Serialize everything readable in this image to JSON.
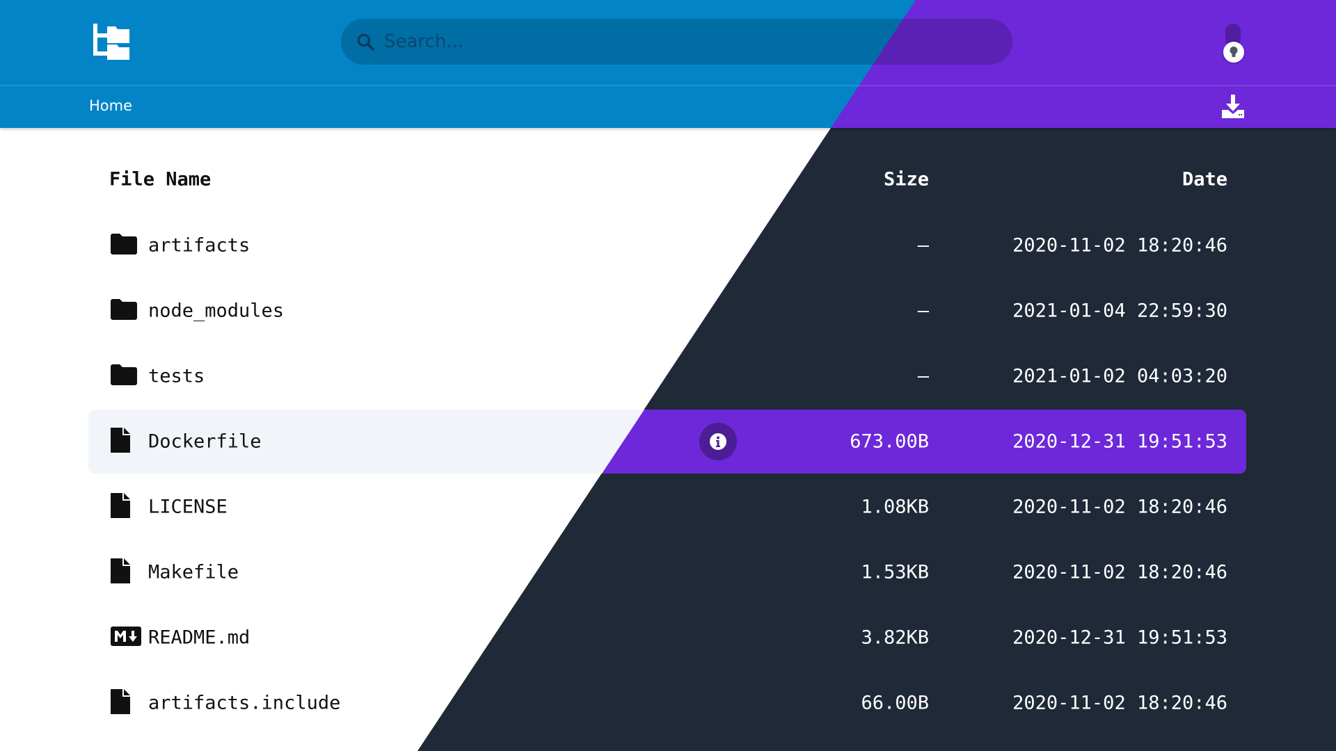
{
  "header": {
    "search_placeholder": "Search...",
    "breadcrumb": [
      "Home"
    ]
  },
  "colors": {
    "header_light": "#0284c7",
    "header_dark": "#6d28d9",
    "bg_dark": "#1f2937",
    "selected_light": "#f1f5f9",
    "selected_dark": "#6d28d9"
  },
  "table": {
    "columns": {
      "name": "File Name",
      "size": "Size",
      "date": "Date"
    },
    "rows": [
      {
        "name": "artifacts",
        "icon": "folder-icon",
        "size": "—",
        "date": "2020-11-02 18:20:46"
      },
      {
        "name": "node_modules",
        "icon": "folder-icon",
        "size": "—",
        "date": "2021-01-04 22:59:30"
      },
      {
        "name": "tests",
        "icon": "folder-icon",
        "size": "—",
        "date": "2021-01-02 04:03:20"
      },
      {
        "name": "Dockerfile",
        "icon": "file-icon",
        "size": "673.00B",
        "date": "2020-12-31 19:51:53",
        "selected": true
      },
      {
        "name": "LICENSE",
        "icon": "file-icon",
        "size": "1.08KB",
        "date": "2020-11-02 18:20:46"
      },
      {
        "name": "Makefile",
        "icon": "file-icon",
        "size": "1.53KB",
        "date": "2020-11-02 18:20:46"
      },
      {
        "name": "README.md",
        "icon": "markdown-icon",
        "size": "3.82KB",
        "date": "2020-12-31 19:51:53"
      },
      {
        "name": "artifacts.include",
        "icon": "file-icon",
        "size": "66.00B",
        "date": "2020-11-02 18:20:46"
      }
    ]
  }
}
